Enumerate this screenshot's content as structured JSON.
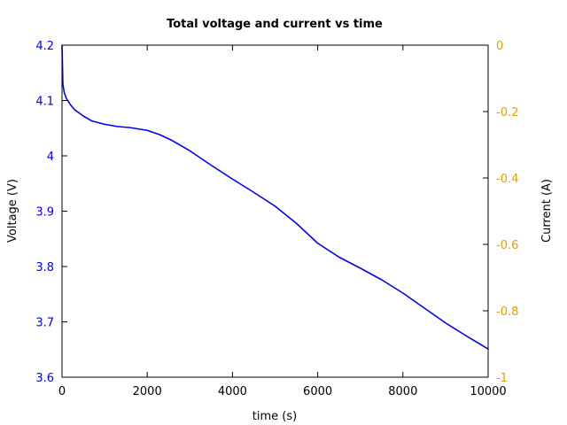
{
  "chart_data": {
    "type": "line",
    "title": "Total voltage and current vs time",
    "xlabel": "time (s)",
    "ylabel": "Voltage (V)",
    "y2label": "Current (A)",
    "xlim": [
      0,
      10000
    ],
    "ylim": [
      3.6,
      4.2
    ],
    "y2lim": [
      -1,
      0
    ],
    "xticks": [
      "0",
      "2000",
      "4000",
      "6000",
      "8000",
      "10000"
    ],
    "yticks": [
      "3.6",
      "3.7",
      "3.8",
      "3.9",
      "4",
      "4.1",
      "4.2"
    ],
    "y2ticks": [
      "-1",
      "-0.8",
      "-0.6",
      "-0.4",
      "-0.2",
      "0"
    ],
    "grid": false,
    "colors": {
      "voltage": "#0000ff",
      "current_axis": "#e6a000",
      "axes": "#000000"
    },
    "series": [
      {
        "axis": "left",
        "x": [
          0,
          20,
          50,
          100,
          200,
          300,
          500,
          700,
          1000,
          1300,
          1600,
          2000,
          2300,
          2600,
          3000,
          3500,
          4000,
          4500,
          5000,
          5500,
          6000,
          6500,
          7000,
          7500,
          8000,
          8500,
          9000,
          9500,
          10000
        ],
        "values": [
          4.2,
          4.13,
          4.115,
          4.104,
          4.092,
          4.083,
          4.072,
          4.063,
          4.057,
          4.053,
          4.051,
          4.046,
          4.038,
          4.027,
          4.009,
          3.983,
          3.958,
          3.934,
          3.909,
          3.878,
          3.842,
          3.817,
          3.797,
          3.776,
          3.752,
          3.725,
          3.698,
          3.674,
          3.651
        ]
      }
    ]
  }
}
